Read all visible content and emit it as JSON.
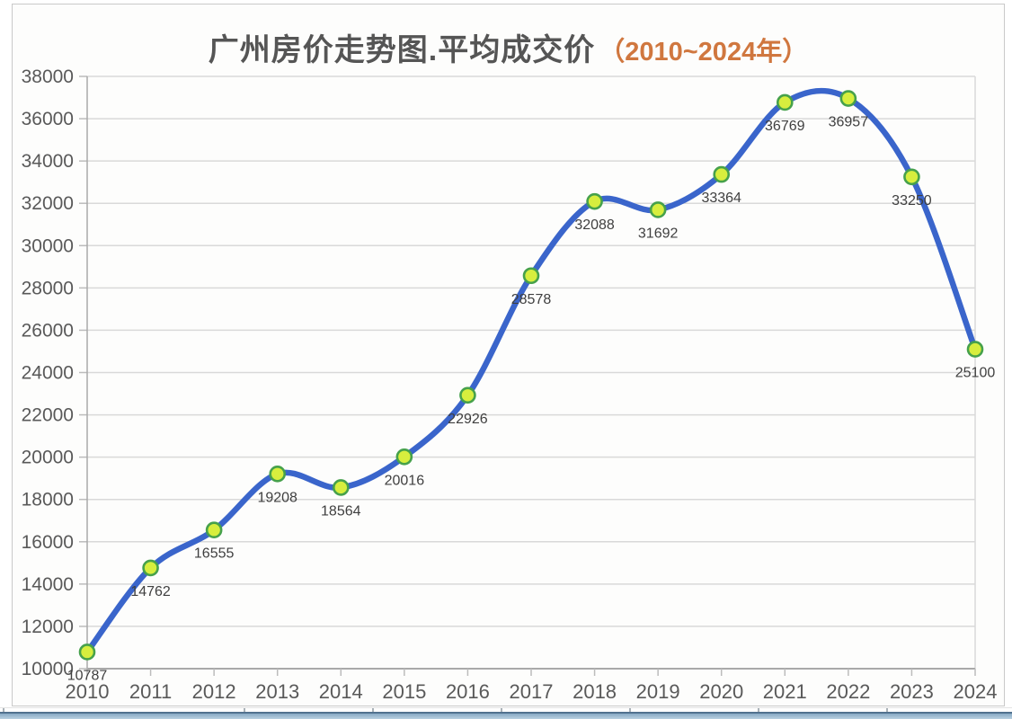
{
  "title": {
    "main": "广州房价走势图.平均成交价",
    "range": "（2010~2024年）"
  },
  "chart_data": {
    "type": "line",
    "title": "广州房价走势图.平均成交价（2010~2024年）",
    "categories": [
      "2010",
      "2011",
      "2012",
      "2013",
      "2014",
      "2015",
      "2016",
      "2017",
      "2018",
      "2019",
      "2020",
      "2021",
      "2022",
      "2023",
      "2024"
    ],
    "values": [
      10787,
      14762,
      16555,
      19208,
      18564,
      20016,
      22926,
      28578,
      32088,
      31692,
      33364,
      36769,
      36957,
      33250,
      25100
    ],
    "xlabel": "",
    "ylabel": "",
    "ylim": [
      10000,
      38000
    ],
    "ystep": 2000,
    "grid": "horizontal",
    "legend": "none",
    "smooth": true,
    "data_labels_visible": true
  },
  "colors": {
    "line": "#3a65cb",
    "marker_fill": "#d7ee3e",
    "marker_stroke": "#46a14b",
    "gridline": "#d9d9d9",
    "axis_line": "#a9a9a9",
    "tick": "#bcbcbc",
    "axis_text": "#595959",
    "data_label_text": "#3f3f3f",
    "title_main": "#555555",
    "title_range": "#d0773f"
  }
}
